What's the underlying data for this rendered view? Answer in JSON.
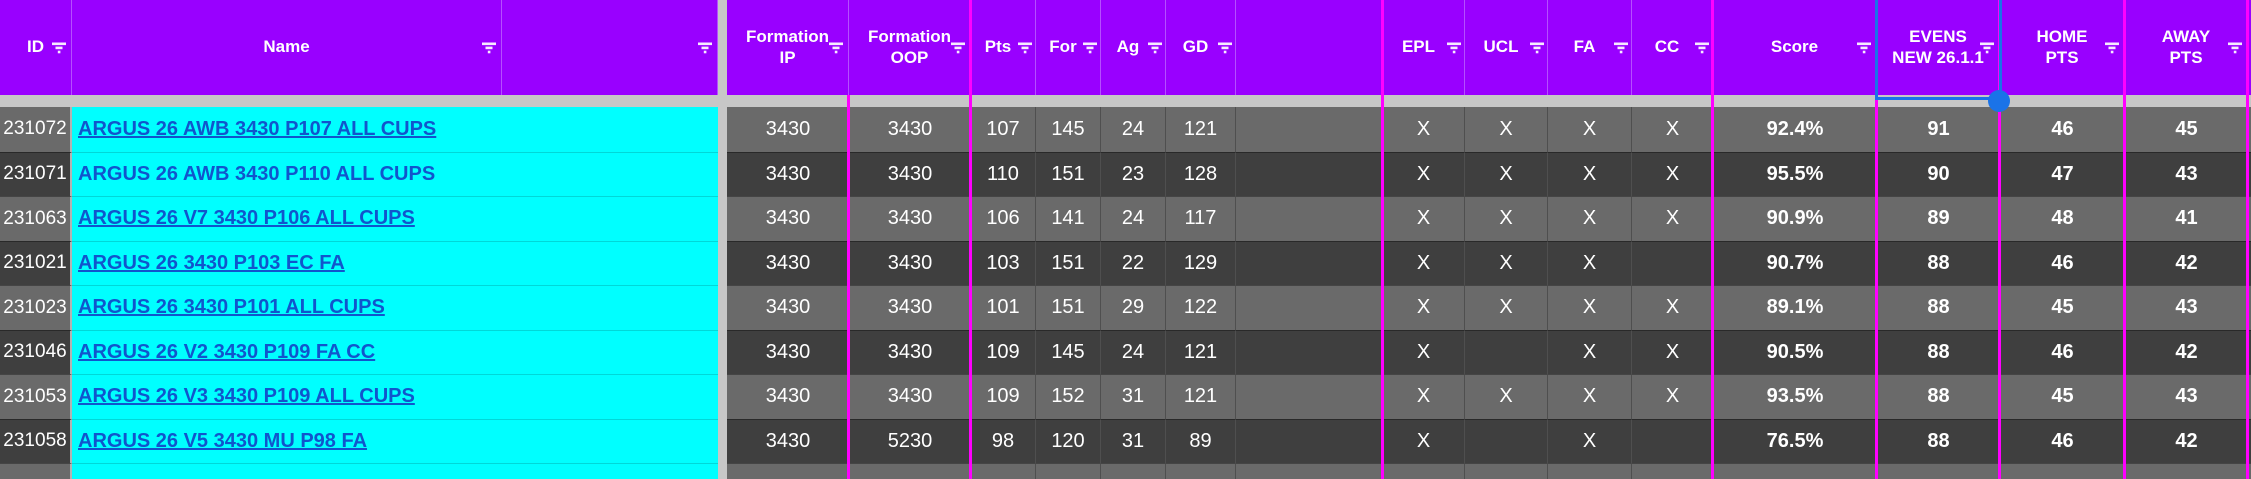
{
  "table": {
    "header": {
      "id": "ID",
      "name": "Name",
      "formation_ip": "Formation IP",
      "formation_oop": "Formation OOP",
      "pts": "Pts",
      "for": "For",
      "ag": "Ag",
      "gd": "GD",
      "epl": "EPL",
      "ucl": "UCL",
      "fa": "FA",
      "cc": "CC",
      "score": "Score",
      "evens_new": "EVENS NEW 26.1.1",
      "home_pts": "HOME PTS",
      "away_pts": "AWAY PTS"
    },
    "rows": [
      {
        "id": "231072",
        "name": "ARGUS 26 AWB 3430 P107 ALL CUPS",
        "name_underlined": true,
        "formation_ip": "3430",
        "formation_oop": "3430",
        "pts": "107",
        "for": "145",
        "ag": "24",
        "gd": "121",
        "epl": "X",
        "ucl": "X",
        "fa": "X",
        "cc": "X",
        "score": "92.4%",
        "evens_new": "91",
        "home_pts": "46",
        "away_pts": "45"
      },
      {
        "id": "231071",
        "name": "ARGUS 26 AWB 3430 P110 ALL CUPS",
        "name_underlined": false,
        "formation_ip": "3430",
        "formation_oop": "3430",
        "pts": "110",
        "for": "151",
        "ag": "23",
        "gd": "128",
        "epl": "X",
        "ucl": "X",
        "fa": "X",
        "cc": "X",
        "score": "95.5%",
        "evens_new": "90",
        "home_pts": "47",
        "away_pts": "43"
      },
      {
        "id": "231063",
        "name": "ARGUS 26 V7 3430 P106 ALL CUPS",
        "name_underlined": true,
        "formation_ip": "3430",
        "formation_oop": "3430",
        "pts": "106",
        "for": "141",
        "ag": "24",
        "gd": "117",
        "epl": "X",
        "ucl": "X",
        "fa": "X",
        "cc": "X",
        "score": "90.9%",
        "evens_new": "89",
        "home_pts": "48",
        "away_pts": "41"
      },
      {
        "id": "231021",
        "name": "ARGUS 26 3430 P103 EC FA",
        "name_underlined": true,
        "formation_ip": "3430",
        "formation_oop": "3430",
        "pts": "103",
        "for": "151",
        "ag": "22",
        "gd": "129",
        "epl": "X",
        "ucl": "X",
        "fa": "X",
        "cc": "",
        "score": "90.7%",
        "evens_new": "88",
        "home_pts": "46",
        "away_pts": "42"
      },
      {
        "id": "231023",
        "name": "ARGUS 26 3430 P101 ALL CUPS",
        "name_underlined": true,
        "formation_ip": "3430",
        "formation_oop": "3430",
        "pts": "101",
        "for": "151",
        "ag": "29",
        "gd": "122",
        "epl": "X",
        "ucl": "X",
        "fa": "X",
        "cc": "X",
        "score": "89.1%",
        "evens_new": "88",
        "home_pts": "45",
        "away_pts": "43"
      },
      {
        "id": "231046",
        "name": "ARGUS 26 V2 3430 P109 FA CC",
        "name_underlined": true,
        "formation_ip": "3430",
        "formation_oop": "3430",
        "pts": "109",
        "for": "145",
        "ag": "24",
        "gd": "121",
        "epl": "X",
        "ucl": "",
        "fa": "X",
        "cc": "X",
        "score": "90.5%",
        "evens_new": "88",
        "home_pts": "46",
        "away_pts": "42"
      },
      {
        "id": "231053",
        "name": "ARGUS 26 V3 3430 P109 ALL CUPS",
        "name_underlined": true,
        "formation_ip": "3430",
        "formation_oop": "3430",
        "pts": "109",
        "for": "152",
        "ag": "31",
        "gd": "121",
        "epl": "X",
        "ucl": "X",
        "fa": "X",
        "cc": "X",
        "score": "93.5%",
        "evens_new": "88",
        "home_pts": "45",
        "away_pts": "43"
      },
      {
        "id": "231058",
        "name": "ARGUS 26 V5 3430 MU P98 FA",
        "name_underlined": true,
        "formation_ip": "3430",
        "formation_oop": "5230",
        "pts": "98",
        "for": "120",
        "ag": "31",
        "gd": "89",
        "epl": "X",
        "ucl": "",
        "fa": "X",
        "cc": "",
        "score": "76.5%",
        "evens_new": "88",
        "home_pts": "46",
        "away_pts": "42"
      }
    ]
  },
  "selection": {
    "selected_header": "EVENS NEW 26.1.1"
  },
  "icons": {
    "filter": "filter-icon"
  },
  "colors": {
    "header_bg": "#9900ff",
    "column_border": "#ff00ff",
    "name_cell_bg": "#00ffff",
    "link_blue": "#1155cc",
    "row_light": "#6a6a6a",
    "row_dark": "#3f3f3f",
    "selection_blue": "#1a73e8",
    "frozen_divider": "#c7c7c7",
    "text_white": "#ffffff"
  }
}
